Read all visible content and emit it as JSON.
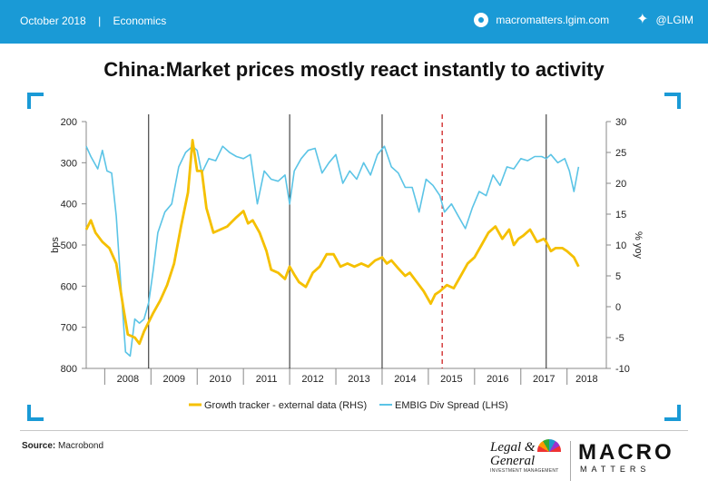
{
  "header": {
    "date": "October 2018",
    "separator": "|",
    "section": "Economics",
    "website": "macromatters.lgim.com",
    "twitter": "@LGIM"
  },
  "title": "China:Market prices mostly react instantly to activity",
  "footer": {
    "source_label": "Source:",
    "source_value": "Macrobond",
    "logo_lg_line1": "Legal &",
    "logo_lg_line2": "General",
    "logo_lg_line3": "INVESTMENT MANAGEMENT",
    "logo_macro": "MACRO",
    "logo_matters": "MATTERS"
  },
  "colors": {
    "brand": "#1a9ad6",
    "spread": "#5bc4e6",
    "growth": "#f5c000",
    "vline": "#222222",
    "dashed": "#d23030"
  },
  "chart_data": {
    "type": "line",
    "title": "China:Market prices mostly react instantly to activity",
    "left_axis": {
      "label": "bps",
      "min": 200,
      "max": 800,
      "inverted": true,
      "ticks": [
        200,
        300,
        400,
        500,
        600,
        700,
        800
      ]
    },
    "right_axis": {
      "label": "% yoy",
      "min": -10,
      "max": 30,
      "ticks": [
        30,
        25,
        20,
        15,
        10,
        5,
        0,
        -5,
        -10
      ]
    },
    "x_range": [
      2007.6,
      2018.85
    ],
    "x_tick_labels": [
      "2008",
      "2009",
      "2010",
      "2011",
      "2012",
      "2013",
      "2014",
      "2015",
      "2016",
      "2017",
      "2018"
    ],
    "vertical_lines": [
      2008.95,
      2012.0,
      2014.0,
      2017.55
    ],
    "dashed_line": 2015.3,
    "legend": [
      "Growth tracker - external data (RHS)",
      "EMBIG Div Spread (LHS)"
    ],
    "legend_placement": "bottom",
    "series": [
      {
        "name": "Growth tracker - external data (RHS)",
        "axis": "right",
        "x": [
          2007.6,
          2007.7,
          2007.8,
          2007.95,
          2008.1,
          2008.25,
          2008.4,
          2008.5,
          2008.65,
          2008.75,
          2008.85,
          2008.95,
          2009.05,
          2009.2,
          2009.35,
          2009.5,
          2009.65,
          2009.8,
          2009.9,
          2010.0,
          2010.1,
          2010.2,
          2010.35,
          2010.5,
          2010.65,
          2010.85,
          2011.0,
          2011.1,
          2011.2,
          2011.35,
          2011.5,
          2011.6,
          2011.75,
          2011.9,
          2012.0,
          2012.1,
          2012.2,
          2012.35,
          2012.5,
          2012.65,
          2012.8,
          2012.95,
          2013.1,
          2013.25,
          2013.4,
          2013.55,
          2013.7,
          2013.85,
          2014.0,
          2014.1,
          2014.2,
          2014.35,
          2014.5,
          2014.6,
          2014.75,
          2014.9,
          2015.05,
          2015.15,
          2015.25,
          2015.4,
          2015.55,
          2015.7,
          2015.85,
          2016.0,
          2016.15,
          2016.3,
          2016.45,
          2016.6,
          2016.75,
          2016.85,
          2016.95,
          2017.05,
          2017.2,
          2017.35,
          2017.5,
          2017.55,
          2017.65,
          2017.75,
          2017.9,
          2018.0,
          2018.15,
          2018.25
        ],
        "values": [
          12.5,
          14,
          12,
          10.5,
          9.5,
          7,
          0,
          -4.5,
          -5,
          -6,
          -4,
          -2.5,
          -1,
          1,
          3.5,
          7,
          13,
          18.5,
          27,
          22,
          22,
          16,
          12,
          12.5,
          13,
          14.5,
          15.5,
          13.5,
          14,
          12,
          9,
          6,
          5.5,
          4.5,
          6.5,
          5.2,
          4,
          3.2,
          5.5,
          6.5,
          8.5,
          8.5,
          6.5,
          7,
          6.5,
          7,
          6.5,
          7.5,
          8,
          7,
          7.5,
          6.2,
          5,
          5.5,
          4,
          2.5,
          0.5,
          2,
          2.5,
          3.5,
          3,
          5,
          7,
          8,
          10,
          12,
          13,
          11,
          12.5,
          10,
          11,
          11.5,
          12.5,
          10.5,
          11,
          10.5,
          9,
          9.5,
          9.5,
          9,
          8,
          6.5
        ]
      },
      {
        "name": "EMBIG Div Spread (LHS)",
        "axis": "left",
        "x": [
          2007.6,
          2007.7,
          2007.85,
          2007.95,
          2008.05,
          2008.15,
          2008.25,
          2008.35,
          2008.45,
          2008.55,
          2008.65,
          2008.75,
          2008.85,
          2008.95,
          2009.05,
          2009.15,
          2009.3,
          2009.45,
          2009.6,
          2009.75,
          2009.9,
          2010.0,
          2010.1,
          2010.25,
          2010.4,
          2010.55,
          2010.7,
          2010.85,
          2011.0,
          2011.15,
          2011.3,
          2011.45,
          2011.6,
          2011.75,
          2011.9,
          2012.0,
          2012.1,
          2012.25,
          2012.4,
          2012.55,
          2012.7,
          2012.85,
          2013.0,
          2013.15,
          2013.3,
          2013.45,
          2013.6,
          2013.75,
          2013.9,
          2014.05,
          2014.2,
          2014.35,
          2014.5,
          2014.65,
          2014.8,
          2014.95,
          2015.1,
          2015.25,
          2015.35,
          2015.5,
          2015.65,
          2015.8,
          2015.95,
          2016.1,
          2016.25,
          2016.4,
          2016.55,
          2016.7,
          2016.85,
          2017.0,
          2017.15,
          2017.3,
          2017.45,
          2017.55,
          2017.65,
          2017.8,
          2017.95,
          2018.05,
          2018.15,
          2018.25
        ],
        "values": [
          260,
          285,
          315,
          270,
          320,
          325,
          430,
          600,
          760,
          770,
          680,
          690,
          680,
          640,
          560,
          470,
          420,
          400,
          310,
          275,
          260,
          270,
          325,
          290,
          295,
          260,
          275,
          285,
          290,
          280,
          400,
          320,
          340,
          345,
          330,
          400,
          320,
          290,
          270,
          265,
          325,
          300,
          280,
          350,
          320,
          340,
          300,
          330,
          280,
          260,
          310,
          325,
          360,
          360,
          420,
          340,
          355,
          380,
          420,
          400,
          430,
          460,
          410,
          370,
          380,
          330,
          355,
          310,
          315,
          290,
          295,
          285,
          285,
          290,
          280,
          300,
          290,
          320,
          370,
          310
        ]
      }
    ]
  }
}
